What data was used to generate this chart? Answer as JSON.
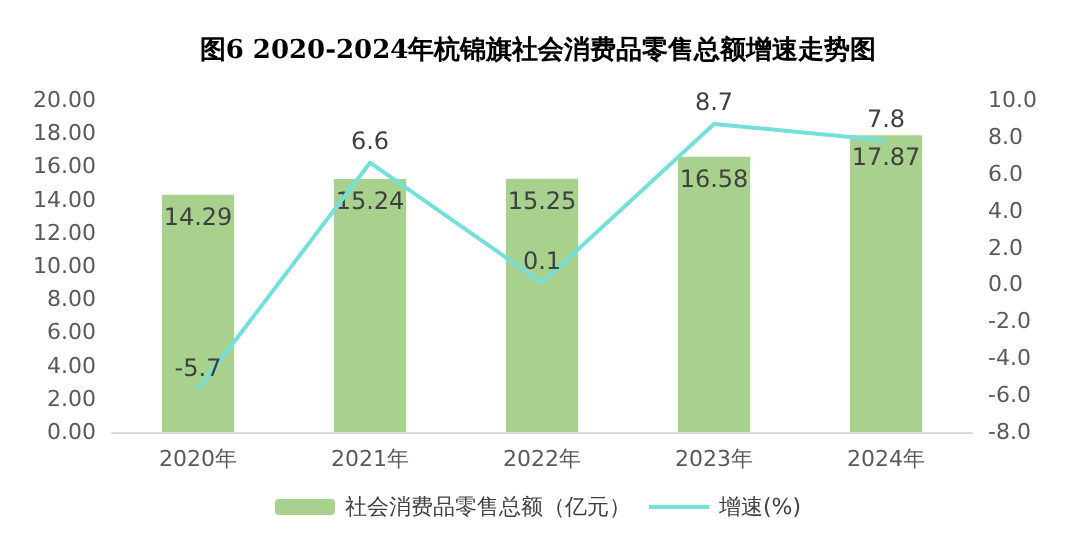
{
  "chart_data": {
    "type": "bar",
    "title": "图6 2020-2024年杭锦旗社会消费品零售总额增速走势图",
    "categories": [
      "2020年",
      "2021年",
      "2022年",
      "2023年",
      "2024年"
    ],
    "series": [
      {
        "name": "社会消费品零售总额（亿元）",
        "color": "#a9d18e",
        "values": [
          14.29,
          15.24,
          15.25,
          16.58,
          17.87
        ]
      },
      {
        "name": "增速(%)",
        "type": "line",
        "axis": "y2",
        "color": "#75e0d9",
        "values": [
          -5.7,
          6.6,
          0.1,
          8.7,
          7.8
        ]
      }
    ],
    "ylim": [
      0,
      20
    ],
    "yticks": [
      {
        "value": 0,
        "label": "0.00"
      },
      {
        "value": 2,
        "label": "2.00"
      },
      {
        "value": 4,
        "label": "4.00"
      },
      {
        "value": 6,
        "label": "6.00"
      },
      {
        "value": 8,
        "label": "8.00"
      },
      {
        "value": 10,
        "label": "10.00"
      },
      {
        "value": 12,
        "label": "12.00"
      },
      {
        "value": 14,
        "label": "14.00"
      },
      {
        "value": 16,
        "label": "16.00"
      },
      {
        "value": 18,
        "label": "18.00"
      },
      {
        "value": 20,
        "label": "20.00"
      }
    ],
    "y2lim": [
      -8,
      10
    ],
    "y2ticks": [
      {
        "value": -8,
        "label": "-8.0"
      },
      {
        "value": -6,
        "label": "-6.0"
      },
      {
        "value": -4,
        "label": "-4.0"
      },
      {
        "value": -2,
        "label": "-2.0"
      },
      {
        "value": 0,
        "label": "0.0"
      },
      {
        "value": 2,
        "label": "2.0"
      },
      {
        "value": 4,
        "label": "4.0"
      },
      {
        "value": 6,
        "label": "6.0"
      },
      {
        "value": 8,
        "label": "8.0"
      },
      {
        "value": 10,
        "label": "10.0"
      }
    ],
    "data_labels": true,
    "legend": "bottom",
    "grid": false,
    "marker": "none"
  }
}
